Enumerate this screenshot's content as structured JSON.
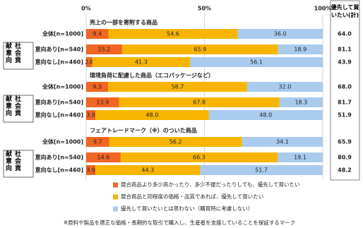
{
  "chart_data": {
    "type": "stacked-bar",
    "xlim": [
      0,
      100
    ],
    "xticks": [
      {
        "value": 0,
        "label": "0%"
      },
      {
        "value": 50,
        "label": "50%"
      },
      {
        "value": 100,
        "label": "100%"
      }
    ],
    "grid": true,
    "total_header": "優先して買いたい(計)",
    "segment_label": "社会貢献意向",
    "series": [
      {
        "name": "競合商品より多少高かったり、多少不便だったりしても、優先して買いたい",
        "color": "#f26522"
      },
      {
        "name": "競合商品と同程度の価格・品質であれば、優先して買いたい",
        "color": "#f7b500"
      },
      {
        "name": "優先して買いたいとは思わない（購買時に考慮しない）",
        "color": "#a9cbee"
      }
    ],
    "groups": [
      {
        "title": "売上の一部を寄附する商品",
        "categories": [
          "全体[n=1000]",
          "意向あり[n=540]",
          "意向なし[n=460]"
        ],
        "values": [
          [
            9.4,
            15.2,
            2.6
          ],
          [
            54.6,
            65.9,
            41.3
          ],
          [
            36.0,
            18.9,
            56.1
          ]
        ],
        "value_labels": [
          [
            "9.4",
            "15.2",
            "2.6"
          ],
          [
            "54.6",
            "65.9",
            "41.3"
          ],
          [
            "36.0",
            "18.9",
            "56.1"
          ]
        ],
        "totals": [
          64.0,
          81.1,
          43.9
        ],
        "total_labels": [
          "64.0",
          "81.1",
          "43.9"
        ]
      },
      {
        "title": "環境負荷に配慮した商品（エコパッケージなど）",
        "categories": [
          "全体[n=1000]",
          "意向あり[n=540]",
          "意向なし[n=460]"
        ],
        "values": [
          [
            9.3,
            13.9,
            3.9
          ],
          [
            58.7,
            67.8,
            48.0
          ],
          [
            32.0,
            18.3,
            48.0
          ]
        ],
        "value_labels": [
          [
            "9.3",
            "13.9",
            "3.9"
          ],
          [
            "58.7",
            "67.8",
            "48.0"
          ],
          [
            "32.0",
            "18.3",
            "48.0"
          ]
        ],
        "totals": [
          68.0,
          81.7,
          51.9
        ],
        "total_labels": [
          "68.0",
          "81.7",
          "51.9"
        ]
      },
      {
        "title": "フェアトレードマーク（※）のついた商品",
        "categories": [
          "全体[n=1000]",
          "意向あり[n=540]",
          "意向なし[n=460]"
        ],
        "values": [
          [
            9.7,
            14.6,
            3.9
          ],
          [
            56.2,
            66.3,
            44.3
          ],
          [
            34.1,
            19.1,
            51.7
          ]
        ],
        "value_labels": [
          [
            "9.7",
            "14.6",
            "3.9"
          ],
          [
            "56.2",
            "66.3",
            "44.3"
          ],
          [
            "34.1",
            "19.1",
            "51.7"
          ]
        ],
        "totals": [
          65.9,
          80.9,
          48.2
        ],
        "total_labels": [
          "65.9",
          "80.9",
          "48.2"
        ]
      }
    ],
    "footnote": "※原料や製品を適正な価格・長期的な取引で購入し、生産者を支援していることを保証するマーク"
  }
}
